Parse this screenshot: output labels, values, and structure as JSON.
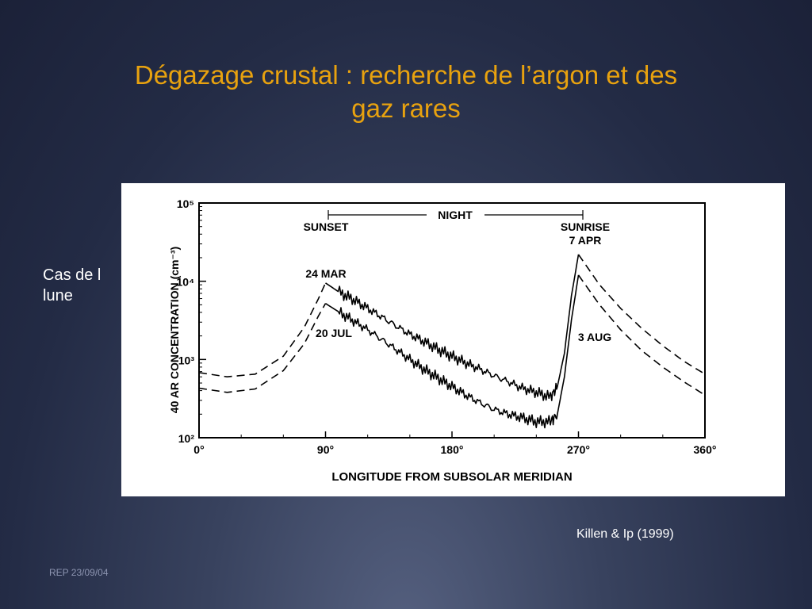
{
  "slide": {
    "title_line1": "Dégazage crustal : recherche de l’argon et des",
    "title_line2": "gaz rares",
    "body_line1": "Cas de l",
    "body_line2": "lune",
    "source": "Killen & Ip (1999)",
    "footer": "REP 23/09/04",
    "colors": {
      "title": "#e8a20f",
      "background": "#232b45"
    }
  },
  "chart_data": {
    "type": "line",
    "title": "",
    "xlabel": "LONGITUDE FROM SUBSOLAR MERIDIAN",
    "ylabel": "40 AR CONCENTRATION (cm⁻³)",
    "xlim": [
      0,
      360
    ],
    "ylim": [
      100,
      100000
    ],
    "yscale": "log",
    "grid": false,
    "x_ticks": [
      "0°",
      "90°",
      "180°",
      "270°",
      "360°"
    ],
    "y_ticks": [
      "10²",
      "10³",
      "10⁴",
      "10⁵"
    ],
    "annotations": {
      "night": "NIGHT",
      "sunset": "SUNSET",
      "sunrise_line1": "SUNRISE",
      "sunrise_line2": "7 APR",
      "mar": "24 MAR",
      "jul": "20 JUL",
      "aug": "3 AUG"
    },
    "series": [
      {
        "name": "24 MAR",
        "style": "dashed",
        "x": [
          0,
          20,
          40,
          60,
          75,
          85,
          90
        ],
        "y": [
          680,
          600,
          650,
          1100,
          2600,
          6000,
          9500
        ]
      },
      {
        "name": "20 JUL",
        "style": "dashed",
        "x": [
          0,
          20,
          40,
          60,
          75,
          85,
          90
        ],
        "y": [
          430,
          380,
          420,
          720,
          1600,
          3600,
          5200
        ]
      },
      {
        "name": "24 MAR",
        "style": "solid",
        "x": [
          90,
          100,
          110,
          120,
          130,
          140,
          150,
          160,
          170,
          180,
          190,
          200,
          210,
          220,
          230,
          240,
          250,
          255,
          260,
          265,
          270
        ],
        "y": [
          9500,
          7200,
          5800,
          4500,
          3500,
          2700,
          2100,
          1700,
          1350,
          1100,
          900,
          750,
          620,
          520,
          430,
          380,
          330,
          450,
          1200,
          6500,
          22000
        ]
      },
      {
        "name": "20 JUL",
        "style": "solid",
        "x": [
          90,
          100,
          110,
          120,
          130,
          140,
          150,
          160,
          170,
          180,
          190,
          200,
          210,
          220,
          230,
          240,
          250,
          255,
          260,
          265,
          270
        ],
        "y": [
          5200,
          4000,
          3100,
          2400,
          1800,
          1350,
          1000,
          750,
          580,
          450,
          350,
          280,
          230,
          200,
          180,
          160,
          160,
          200,
          600,
          3200,
          12000
        ]
      },
      {
        "name": "7 APR",
        "style": "dashed",
        "x": [
          270,
          285,
          300,
          315,
          330,
          345,
          360
        ],
        "y": [
          22000,
          9000,
          4500,
          2500,
          1500,
          950,
          650
        ]
      },
      {
        "name": "3 AUG",
        "style": "dashed",
        "x": [
          270,
          285,
          300,
          315,
          330,
          345,
          360
        ],
        "y": [
          12000,
          5000,
          2400,
          1300,
          800,
          520,
          350
        ]
      }
    ]
  }
}
